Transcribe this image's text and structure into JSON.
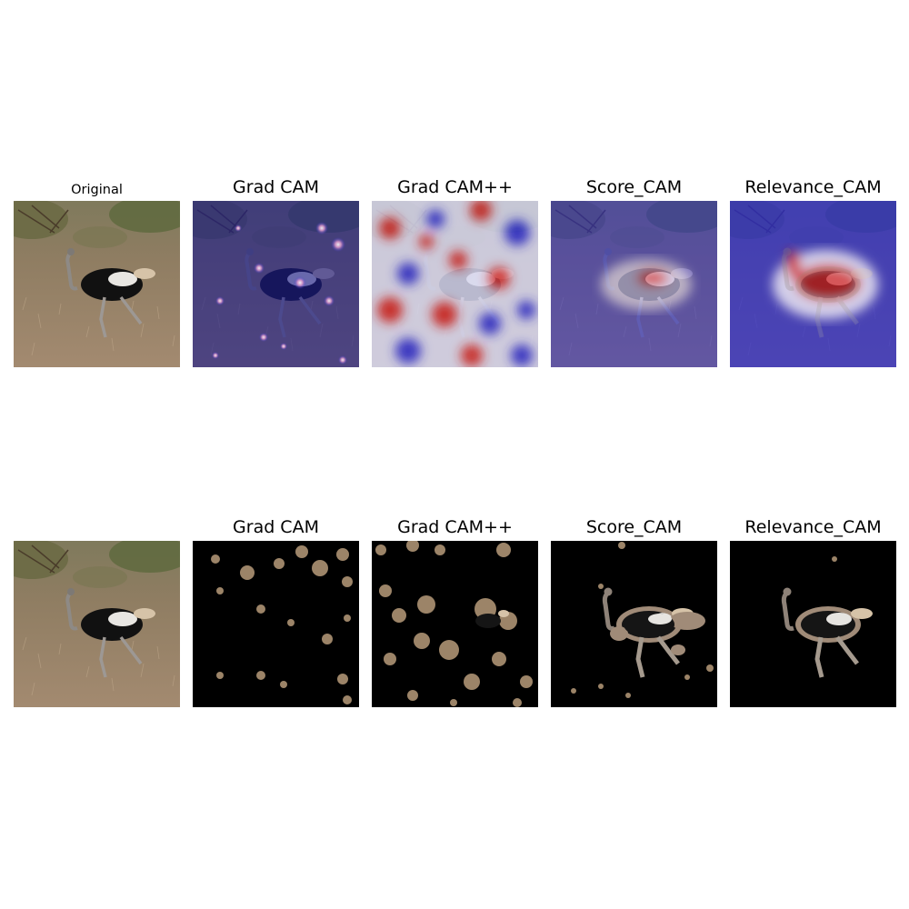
{
  "rows": [
    {
      "panels": [
        {
          "title": "Original",
          "kind": "original"
        },
        {
          "title": "Grad CAM",
          "kind": "heat-gradcam"
        },
        {
          "title": "Grad CAM++",
          "kind": "heat-gradcampp"
        },
        {
          "title": "Score_CAM",
          "kind": "heat-scorecam"
        },
        {
          "title": "Relevance_CAM",
          "kind": "heat-relevance"
        }
      ]
    },
    {
      "panels": [
        {
          "title": "",
          "kind": "original"
        },
        {
          "title": "Grad CAM",
          "kind": "mask-gradcam"
        },
        {
          "title": "Grad CAM++",
          "kind": "mask-gradcampp"
        },
        {
          "title": "Score_CAM",
          "kind": "mask-scorecam"
        },
        {
          "title": "Relevance_CAM",
          "kind": "mask-relevance"
        }
      ]
    }
  ],
  "colors": {
    "heat_low": "#2a2ad0",
    "heat_high": "#d01818",
    "mask_background": "#000000",
    "grass": "#9c8468",
    "ostrich_body": "#111111"
  }
}
